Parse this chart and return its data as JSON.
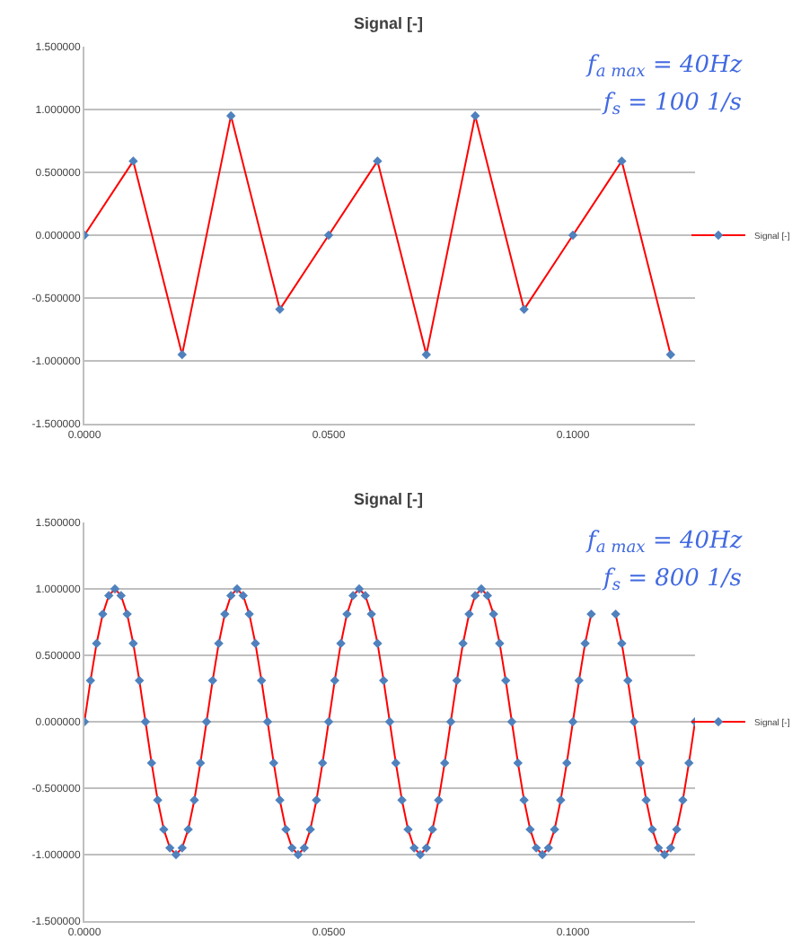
{
  "chart_data": [
    {
      "type": "line",
      "title": "Signal [-]",
      "legend": "right",
      "grid": "y",
      "marker": "diamond",
      "line_style": "solid",
      "x": [
        0,
        0.01,
        0.02,
        0.03,
        0.04,
        0.05,
        0.06,
        0.07,
        0.08,
        0.09,
        0.1,
        0.11,
        0.12
      ],
      "series": [
        {
          "name": "Signal [-]",
          "color": "#ff0000",
          "values": [
            0,
            0.59,
            -0.95,
            0.95,
            -0.59,
            0,
            0.59,
            -0.95,
            0.95,
            -0.59,
            0,
            0.59,
            -0.95
          ]
        }
      ],
      "xlim": [
        0,
        0.125
      ],
      "xticks": [
        {
          "value": 0,
          "label": "0.0000"
        },
        {
          "value": 0.05,
          "label": "0.0500"
        },
        {
          "value": 0.1,
          "label": "0.1000"
        }
      ],
      "ylim": [
        -1.5,
        1.5
      ],
      "yticks": [
        {
          "value": -1.5,
          "label": "-1.500000"
        },
        {
          "value": -1,
          "label": "-1.000000"
        },
        {
          "value": -0.5,
          "label": "-0.500000"
        },
        {
          "value": 0,
          "label": "0.000000"
        },
        {
          "value": 0.5,
          "label": "0.500000"
        },
        {
          "value": 1,
          "label": "1.000000"
        },
        {
          "value": 1.5,
          "label": "1.500000"
        }
      ],
      "annotations": [
        "f$_{a max}$ = 40Hz",
        "f$_{s}$ = 100 1/s"
      ]
    },
    {
      "type": "line",
      "title": "Signal [-]",
      "legend": "right",
      "grid": "y",
      "marker": "diamond",
      "line_style": "solid",
      "x": [
        0,
        0.00125,
        0.0025,
        0.00375,
        0.005,
        0.00625,
        0.0075,
        0.00875,
        0.01,
        0.01125,
        0.0125,
        0.01375,
        0.015,
        0.01625,
        0.0175,
        0.01875,
        0.02,
        0.02125,
        0.0225,
        0.02375,
        0.025,
        0.02625,
        0.0275,
        0.02875,
        0.03,
        0.03125,
        0.0325,
        0.03375,
        0.035,
        0.03625,
        0.0375,
        0.03875,
        0.04,
        0.04125,
        0.0425,
        0.04375,
        0.045,
        0.04625,
        0.0475,
        0.04875,
        0.05,
        0.05125,
        0.0525,
        0.05375,
        0.055,
        0.05625,
        0.0575,
        0.05875,
        0.06,
        0.06125,
        0.0625,
        0.06375,
        0.065,
        0.06625,
        0.0675,
        0.06875,
        0.07,
        0.07125,
        0.0725,
        0.07375,
        0.075,
        0.07625,
        0.0775,
        0.07875,
        0.08,
        0.08125,
        0.0825,
        0.08375,
        0.085,
        0.08625,
        0.0875,
        0.08875,
        0.09,
        0.09125,
        0.0925,
        0.09375,
        0.095,
        0.09625,
        0.0975,
        0.09875,
        0.1,
        0.10125,
        0.1025,
        0.10375,
        0.105,
        0.10625,
        0.1075,
        0.10875,
        0.11,
        0.11125,
        0.1125,
        0.11375,
        0.115,
        0.11625,
        0.1175,
        0.11875,
        0.12,
        0.12125,
        0.1225,
        0.12375,
        0.125
      ],
      "series": [
        {
          "name": "Signal [-]",
          "color": "#ff0000",
          "values": [
            0,
            0.31,
            0.59,
            0.81,
            0.95,
            1,
            0.95,
            0.81,
            0.59,
            0.31,
            0,
            -0.31,
            -0.59,
            -0.81,
            -0.95,
            -1,
            -0.95,
            -0.81,
            -0.59,
            -0.31,
            0,
            0.31,
            0.59,
            0.81,
            0.95,
            1,
            0.95,
            0.81,
            0.59,
            0.31,
            0,
            -0.31,
            -0.59,
            -0.81,
            -0.95,
            -1,
            -0.95,
            -0.81,
            -0.59,
            -0.31,
            0,
            0.31,
            0.59,
            0.81,
            0.95,
            1,
            0.95,
            0.81,
            0.59,
            0.31,
            0,
            -0.31,
            -0.59,
            -0.81,
            -0.95,
            -1,
            -0.95,
            -0.81,
            -0.59,
            -0.31,
            0,
            0.31,
            0.59,
            0.81,
            0.95,
            1,
            0.95,
            0.81,
            0.59,
            0.31,
            0,
            -0.31,
            -0.59,
            -0.81,
            -0.95,
            -1,
            -0.95,
            -0.81,
            -0.59,
            -0.31,
            0,
            0.31,
            0.59,
            0.81,
            null,
            null,
            null,
            0.81,
            0.59,
            0.31,
            0,
            -0.31,
            -0.59,
            -0.81,
            -0.95,
            -1,
            -0.95,
            -0.81,
            -0.59,
            -0.31,
            0
          ]
        }
      ],
      "xlim": [
        0,
        0.125
      ],
      "xticks": [
        {
          "value": 0,
          "label": "0.0000"
        },
        {
          "value": 0.05,
          "label": "0.0500"
        },
        {
          "value": 0.1,
          "label": "0.1000"
        }
      ],
      "ylim": [
        -1.5,
        1.5
      ],
      "yticks": [
        {
          "value": -1.5,
          "label": "-1.500000"
        },
        {
          "value": -1,
          "label": "-1.000000"
        },
        {
          "value": -0.5,
          "label": "-0.500000"
        },
        {
          "value": 0,
          "label": "0.000000"
        },
        {
          "value": 0.5,
          "label": "0.500000"
        },
        {
          "value": 1,
          "label": "1.000000"
        },
        {
          "value": 1.5,
          "label": "1.500000"
        }
      ],
      "annotations": [
        "f$_{a max}$ = 40Hz",
        "f$_{s}$ = 800 1/s"
      ]
    }
  ]
}
